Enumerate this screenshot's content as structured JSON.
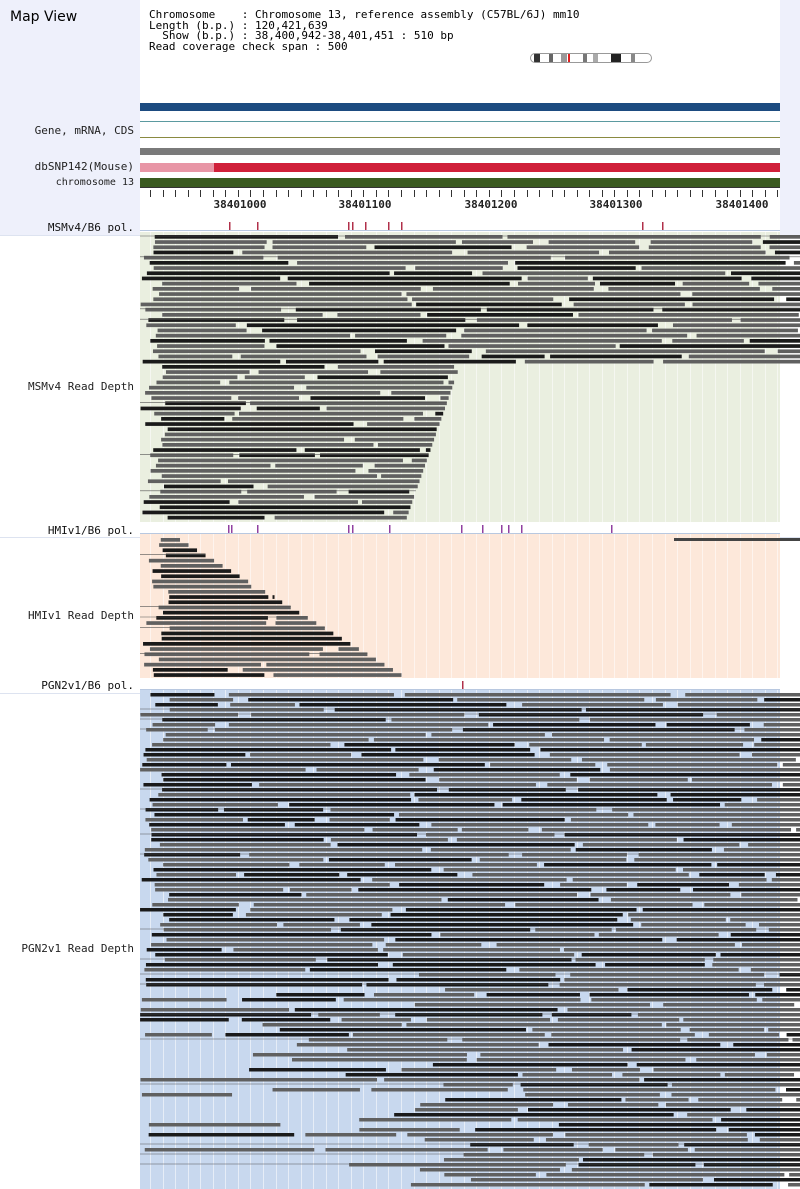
{
  "header": {
    "title": "Map View",
    "chromosome_line": "Chromosome    : Chromosome 13, reference assembly (C57BL/6J) mm10",
    "length_line": "Length (b.p.) : 120,421,639",
    "show_line": "  Show (b.p.) : 38,400,942-38,401,451 : 510 bp",
    "coverage_line": "Read coverage check span : 500"
  },
  "tracks": {
    "gene": "Gene, mRNA, CDS",
    "dbsnp": "dbSNP142(Mouse)",
    "chrom": "chromosome 13",
    "msm_pol": "MSMv4/B6 pol.",
    "msm_depth": "MSMv4 Read Depth",
    "hmi_pol": "HMIv1/B6 pol.",
    "hmi_depth": "HMIv1 Read Depth",
    "pgn_pol": "PGN2v1/B6 pol.",
    "pgn_depth": "PGN2v1 Read Depth"
  },
  "axis": {
    "labels": [
      "38401000",
      "38401100",
      "38401200",
      "38401300",
      "38401400"
    ]
  },
  "colors": {
    "gene_bar": "#1d4b80",
    "mrna_line": "#5b9aa0",
    "cds_line": "#8a8a40",
    "snp_pink": "#e896a6",
    "snp_red": "#d0203a",
    "chrom_green": "#3a5a20",
    "msm_bg": "#eaefe0",
    "hmi_bg": "#fde8da",
    "pgn_bg": "#c8d8ee",
    "pol_mark": "#b0304a",
    "hmi_pol_mark": "#9040a0"
  }
}
